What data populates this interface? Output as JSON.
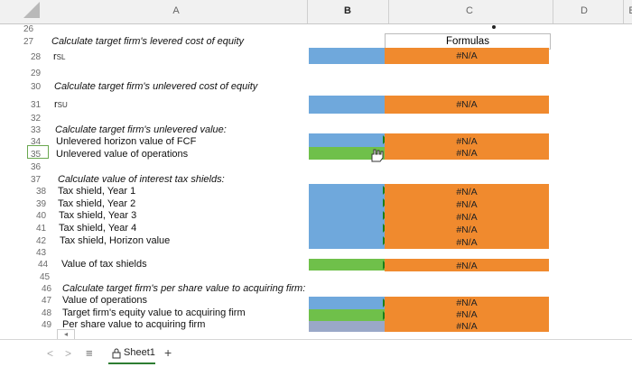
{
  "columns": [
    "A",
    "B",
    "C",
    "D",
    "E"
  ],
  "rows": [
    "26",
    "27",
    "28",
    "29",
    "30",
    "31",
    "32",
    "33",
    "34",
    "35",
    "36",
    "37",
    "38",
    "39",
    "40",
    "41",
    "42",
    "43",
    "44",
    "45",
    "46",
    "47",
    "48",
    "49"
  ],
  "labels": {
    "r27": "Calculate target firm's levered cost of equity",
    "r28_main": "r",
    "r28_sub": "SL",
    "r30": "Calculate target firm's unlevered cost of equity",
    "r31_main": "r",
    "r31_sub": "SU",
    "r33": "Calculate target firm's unlevered value:",
    "r34": "Unlevered horizon value of FCF",
    "r35": "Unlevered value of operations",
    "r37": "Calculate value of interest tax shields:",
    "r38": "Tax shield, Year 1",
    "r39": "Tax shield, Year 2",
    "r40": "Tax shield, Year 3",
    "r41": "Tax shield, Year 4",
    "r42": "Tax shield, Horizon value",
    "r44": "Value of tax shields",
    "r46": "Calculate target firm's per share value to acquiring firm:",
    "r47": "Value of operations",
    "r48": "Target firm's equity value to acquiring firm",
    "r49": "Per share value to acquiring firm"
  },
  "formulas_header": "Formulas",
  "na": "#N/A",
  "colors": {
    "input_blue": "#6fa8dc",
    "formula_orange": "#f08a2e",
    "selected_green": "#6fc04a"
  },
  "tabbar": {
    "sheet_name": "Sheet1",
    "add": "+",
    "menu": "≡",
    "prev": "<",
    "next": ">"
  }
}
